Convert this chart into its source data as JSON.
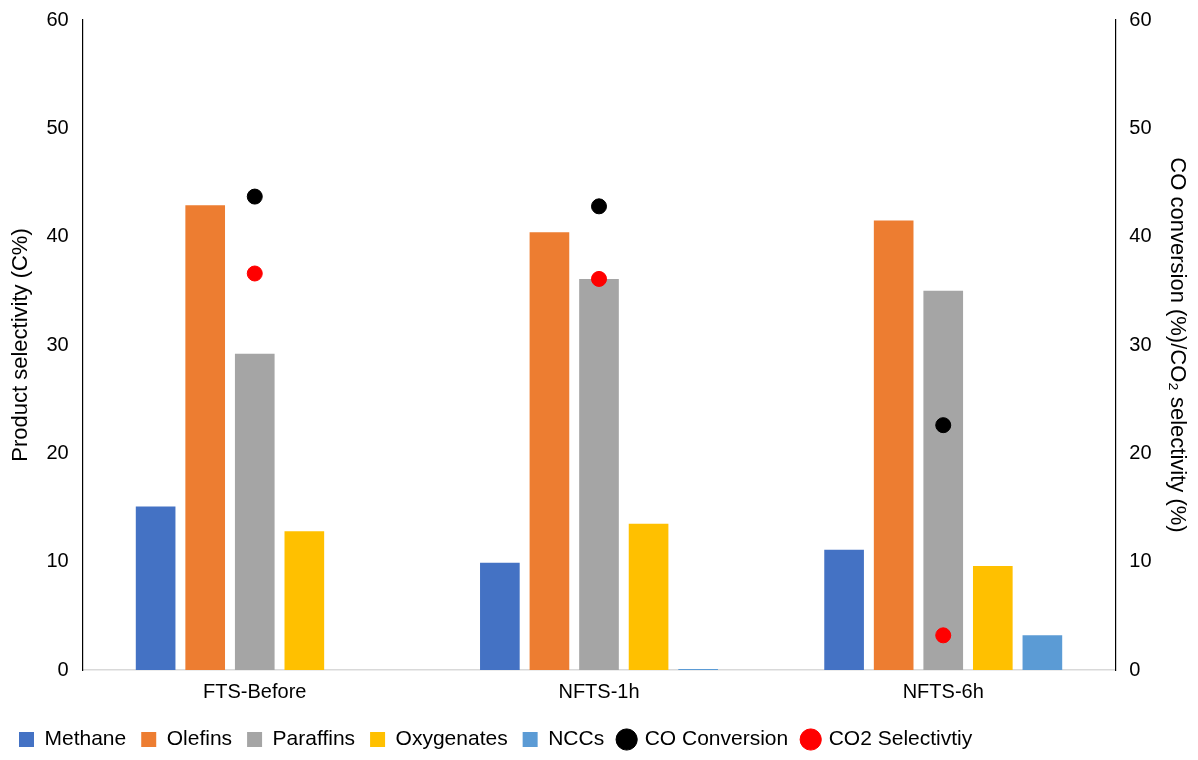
{
  "chart_data": {
    "type": "bar",
    "categories": [
      "FTS-Before",
      "NFTS-1h",
      "NFTS-6h"
    ],
    "series": [
      {
        "name": "Methane",
        "color": "#4472c4",
        "values": [
          15.1,
          9.9,
          11.1
        ]
      },
      {
        "name": "Olefins",
        "color": "#ed7d31",
        "values": [
          42.9,
          40.4,
          41.5
        ]
      },
      {
        "name": "Paraffins",
        "color": "#a5a5a5",
        "values": [
          29.2,
          36.1,
          35.0
        ]
      },
      {
        "name": "Oxygenates",
        "color": "#ffc000",
        "values": [
          12.8,
          13.5,
          9.6
        ]
      },
      {
        "name": "NCCs",
        "color": "#5b9bd5",
        "values": [
          null,
          0.1,
          3.2
        ]
      },
      {
        "name": "CO Conversion",
        "color": "#000000",
        "type": "scatter",
        "axis": "y2",
        "values": [
          43.7,
          42.8,
          22.6
        ]
      },
      {
        "name": "CO2 Selectivtiy",
        "color": "#ff0000",
        "type": "scatter",
        "axis": "y2",
        "values": [
          36.6,
          36.1,
          3.2
        ]
      }
    ],
    "ylabel": "Product selectivity (C%)",
    "y2label": "CO conversion (%)/CO₂ selectivity (%)",
    "ylim": [
      0,
      60
    ],
    "yticks": [
      0,
      10,
      20,
      30,
      40,
      50,
      60
    ],
    "y2lim": [
      0,
      60
    ],
    "y2ticks": [
      0,
      10,
      20,
      30,
      40,
      50,
      60
    ],
    "grid": false,
    "legend": "bottom",
    "marker": "circle"
  }
}
